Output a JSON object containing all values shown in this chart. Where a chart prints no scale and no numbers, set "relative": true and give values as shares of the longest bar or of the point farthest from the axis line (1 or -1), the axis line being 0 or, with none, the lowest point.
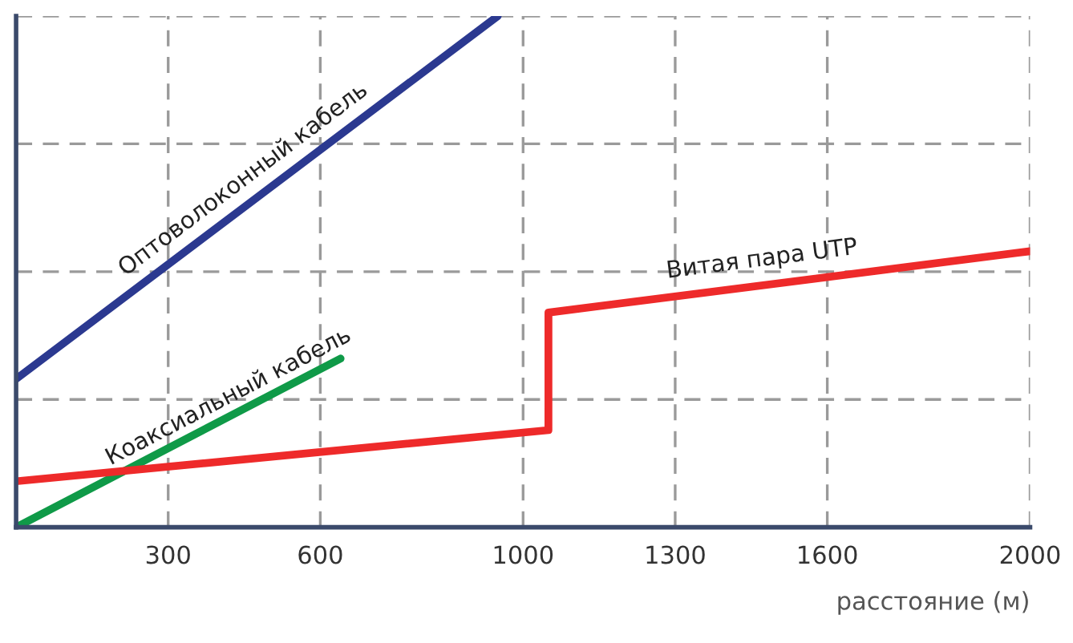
{
  "chart_data": {
    "type": "line",
    "relative": true,
    "xlabel": "расстояние (м)",
    "xlim": [
      0,
      2000
    ],
    "xticks": [
      300,
      600,
      1000,
      1300,
      1600,
      2000
    ],
    "grid": true,
    "line_style": "solid",
    "marker": "none",
    "series": [
      {
        "name": "Оптоволоконный кабель",
        "color": "#2b3990",
        "x": [
          0,
          950
        ],
        "values": [
          0.29,
          1.0
        ]
      },
      {
        "name": "Коаксиальный кабель",
        "color": "#0f9a48",
        "x": [
          0,
          640
        ],
        "values": [
          0.0,
          0.33
        ]
      },
      {
        "name": "Витая пара UTP",
        "color": "#ee2a2a",
        "x": [
          0,
          1050,
          1050,
          2000
        ],
        "values": [
          0.09,
          0.19,
          0.42,
          0.54
        ]
      }
    ]
  }
}
